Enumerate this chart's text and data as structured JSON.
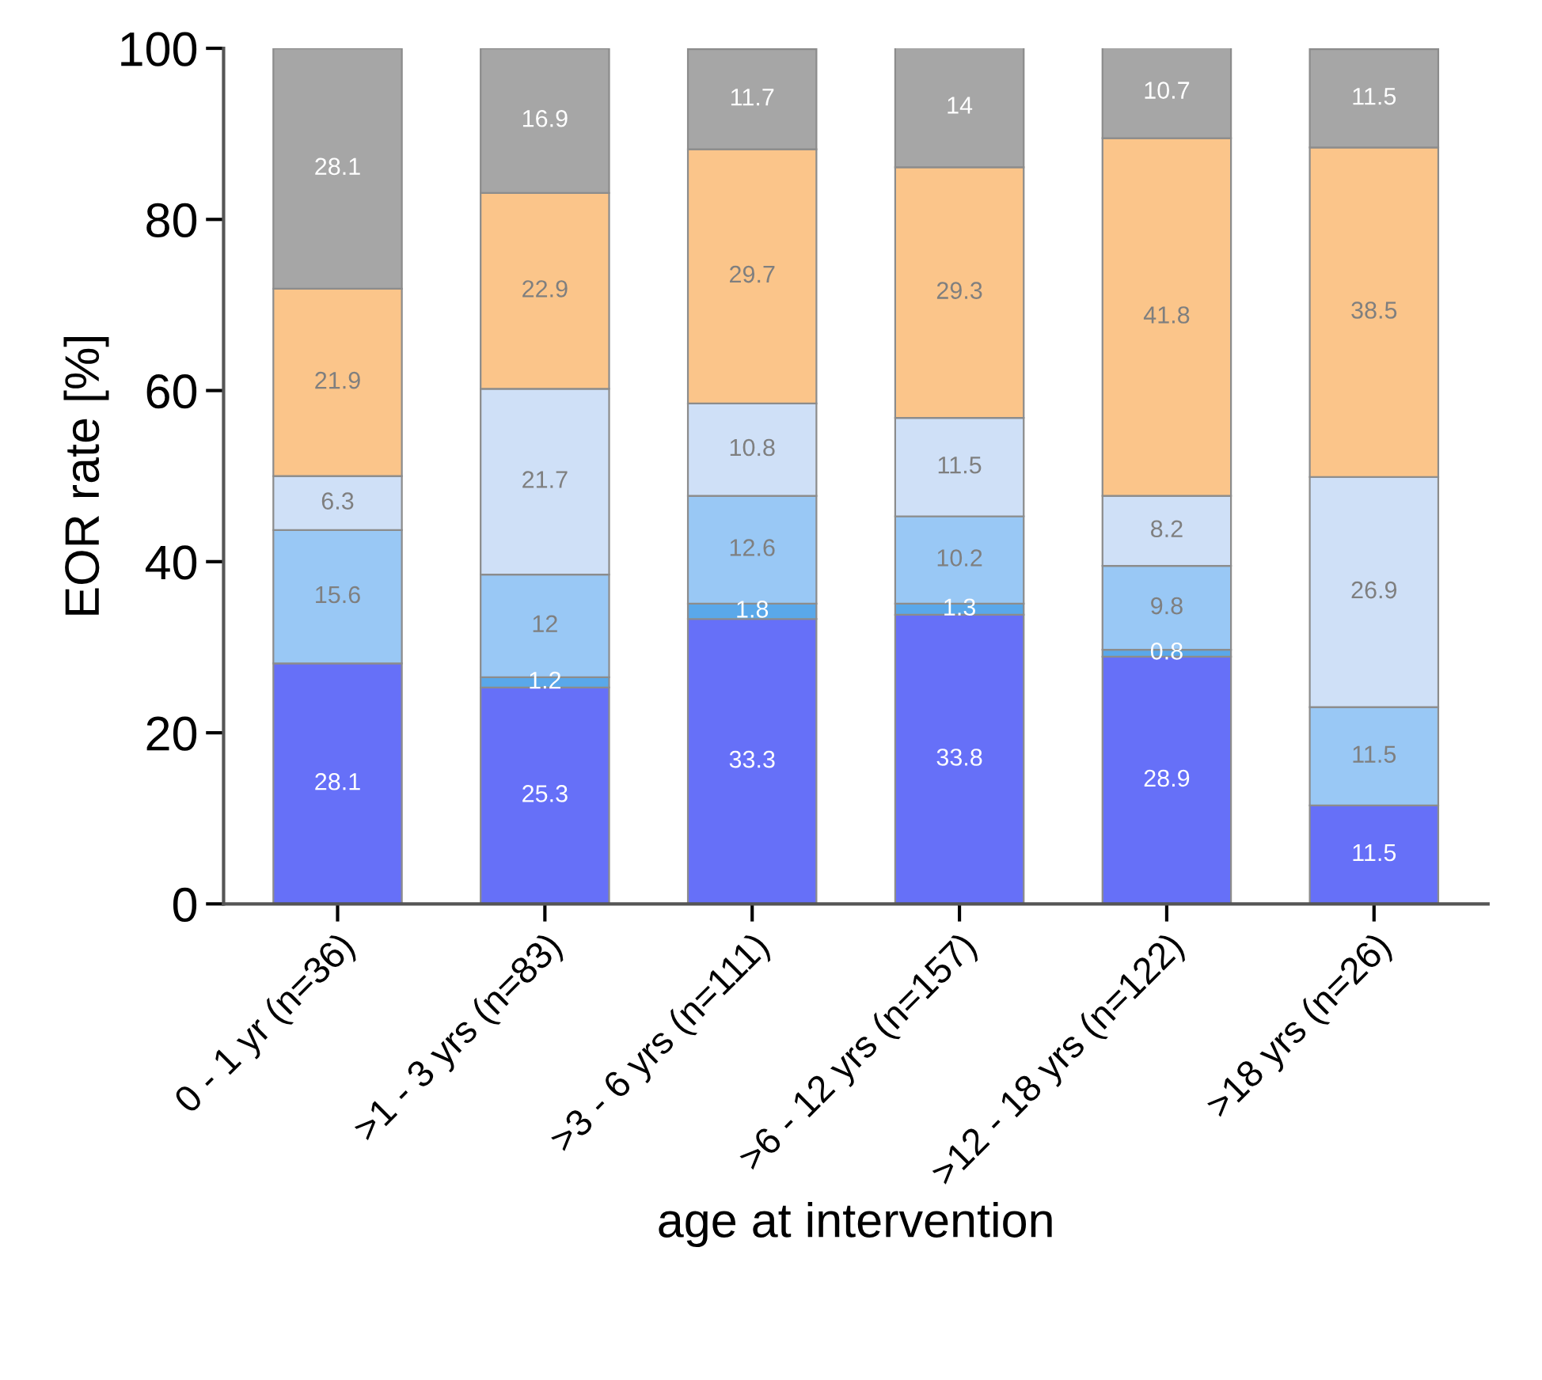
{
  "chart_data": {
    "type": "bar",
    "stacked": true,
    "xlabel": "age at intervention",
    "ylabel": "EOR rate [%]",
    "categories": [
      "0 - 1 yr (n=36)",
      ">1 - 3 yrs (n=83)",
      ">3 - 6 yrs (n=111)",
      ">6 - 12 yrs (n=157)",
      ">12 - 18 yrs (n=122)",
      ">18 yrs (n=26)"
    ],
    "series": [
      {
        "color": "#6670f8",
        "values": [
          28.1,
          25.3,
          33.3,
          33.8,
          28.9,
          11.5
        ],
        "value_labels": [
          "28.1",
          "25.3",
          "33.3",
          "33.8",
          "28.9",
          "11.5"
        ]
      },
      {
        "color": "#5aa8ea",
        "values": [
          null,
          1.2,
          1.8,
          1.3,
          0.8,
          null
        ],
        "value_labels": [
          null,
          "1.2",
          "1.8",
          "1.3",
          "0.8",
          null
        ]
      },
      {
        "color": "#99c8f5",
        "values": [
          15.6,
          12,
          12.6,
          10.2,
          9.8,
          11.5
        ],
        "value_labels": [
          "15.6",
          "12",
          "12.6",
          "10.2",
          "9.8",
          "11.5"
        ]
      },
      {
        "color": "#cfe0f7",
        "values": [
          6.3,
          21.7,
          10.8,
          11.5,
          8.2,
          26.9
        ],
        "value_labels": [
          "6.3",
          "21.7",
          "10.8",
          "11.5",
          "8.2",
          "26.9"
        ]
      },
      {
        "color": "#fbc58a",
        "values": [
          21.9,
          22.9,
          29.7,
          29.3,
          41.8,
          38.5
        ],
        "value_labels": [
          "21.9",
          "22.9",
          "29.7",
          "29.3",
          "41.8",
          "38.5"
        ]
      },
      {
        "color": "#a6a6a6",
        "values": [
          28.1,
          16.9,
          11.7,
          14,
          10.7,
          11.5
        ],
        "value_labels": [
          "28.1",
          "16.9",
          "11.7",
          "14",
          "10.7",
          "11.5"
        ]
      }
    ],
    "ylim": [
      0,
      100
    ],
    "yticks": [
      0,
      20,
      40,
      60,
      80,
      100
    ],
    "grid": false,
    "legend": false
  }
}
